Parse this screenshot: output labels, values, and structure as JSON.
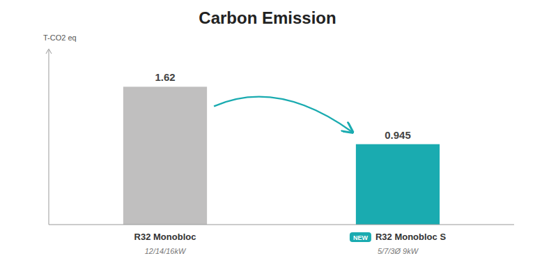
{
  "chart_data": {
    "type": "bar",
    "title": "Carbon Emission",
    "ylabel": "T-CO2 eq",
    "categories": [
      "R32 Monobloc",
      "R32 Monobloc S"
    ],
    "subtitles": [
      "12/14/16kW",
      "5/7/3Ø 9kW"
    ],
    "values": [
      1.62,
      0.945
    ],
    "colors": [
      "#c0bfbf",
      "#1aabb0"
    ],
    "ylim": [
      0,
      2.0
    ],
    "yticks": [],
    "grid": false,
    "tick_labels": false,
    "data_labels": true,
    "annotations": [
      {
        "kind": "badge",
        "text": "NEW",
        "category": "R32 Monobloc S",
        "color": "#1aabb0"
      },
      {
        "kind": "arrow",
        "from": "R32 Monobloc",
        "to": "R32 Monobloc S",
        "color": "#1aabb0"
      }
    ]
  }
}
